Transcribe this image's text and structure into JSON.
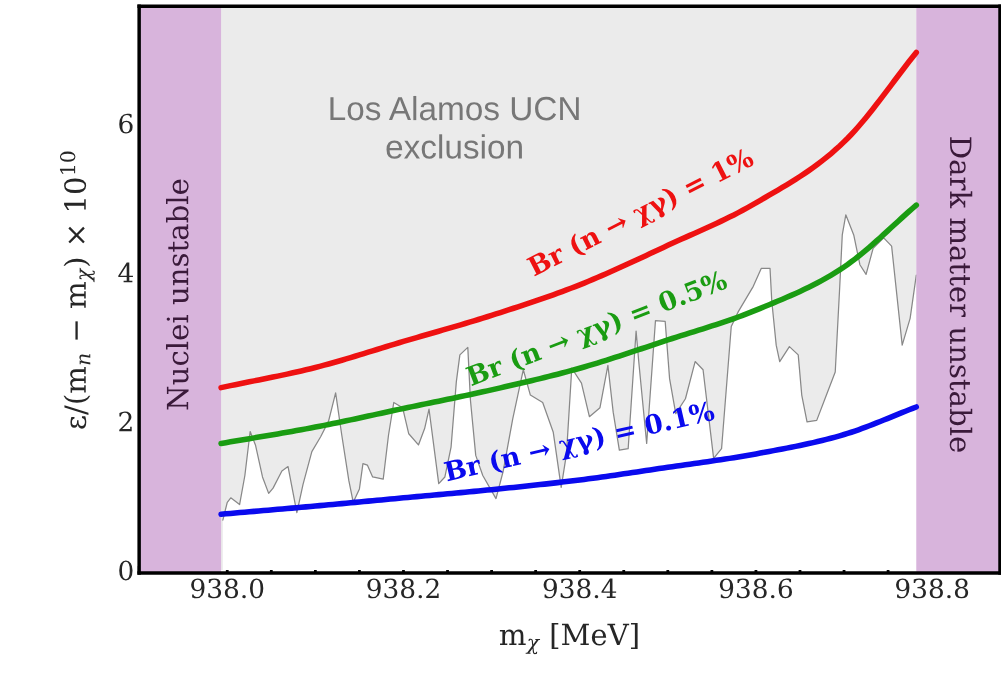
{
  "chart_data": {
    "type": "line",
    "xlabel": "m$_{χ}$ [MeV]",
    "ylabel": "ε/(m$_{n}$ − m$_{χ}$) × 10$^{10}$",
    "xlim": [
      937.9,
      938.877
    ],
    "xticks": [
      {
        "value": 938.0,
        "label": "938.0"
      },
      938.2,
      938.4,
      938.6,
      938.8
    ],
    "ylim": [
      -0.04,
      7.57
    ],
    "yticks": [
      0,
      2,
      4,
      6
    ],
    "grid": false,
    "legend": false,
    "series": [
      {
        "type": "area",
        "color": "#888888",
        "x": [
          937.995,
          938.0,
          938.004,
          938.014,
          938.02,
          938.026,
          938.032,
          938.04,
          938.047,
          938.052,
          938.062,
          938.069,
          938.073,
          938.079,
          938.086,
          938.096,
          938.106,
          938.115,
          938.123,
          938.13,
          938.138,
          938.143,
          938.15,
          938.154,
          938.159,
          938.165,
          938.177,
          938.183,
          938.189,
          938.199,
          938.206,
          938.217,
          938.224,
          938.229,
          938.24,
          938.247,
          938.254,
          938.26,
          938.264,
          938.273,
          938.276,
          938.282,
          938.29,
          938.305,
          938.313,
          938.324,
          938.336,
          938.344,
          938.358,
          938.37,
          938.379,
          938.385,
          938.391,
          938.402,
          938.411,
          938.423,
          938.432,
          938.438,
          938.445,
          938.455,
          938.464,
          938.467,
          938.476,
          938.486,
          938.497,
          938.502,
          938.509,
          938.52,
          938.531,
          938.54,
          938.552,
          938.561,
          938.572,
          938.58,
          938.597,
          938.606,
          938.616,
          938.618,
          938.623,
          938.627,
          938.638,
          938.648,
          938.652,
          938.658,
          938.669,
          938.68,
          938.69,
          938.695,
          938.698,
          938.702,
          938.711,
          938.718,
          938.725,
          938.733,
          938.745,
          938.754,
          938.766,
          938.775,
          938.782
        ],
        "values": [
          0.67,
          0.91,
          0.97,
          0.88,
          1.27,
          1.86,
          1.68,
          1.25,
          1.03,
          1.1,
          1.33,
          1.39,
          1.14,
          0.77,
          1.15,
          1.59,
          1.79,
          2.0,
          2.38,
          1.81,
          1.2,
          0.91,
          1.09,
          1.43,
          1.41,
          1.25,
          1.22,
          1.81,
          2.25,
          2.18,
          1.83,
          1.68,
          1.9,
          2.16,
          1.16,
          1.25,
          1.65,
          2.53,
          2.89,
          2.99,
          2.28,
          1.54,
          1.27,
          0.96,
          1.32,
          2.03,
          2.69,
          2.35,
          2.25,
          1.85,
          1.11,
          1.56,
          2.71,
          2.51,
          2.06,
          2.18,
          2.75,
          2.12,
          1.61,
          1.63,
          3.21,
          2.8,
          1.7,
          3.35,
          3.34,
          2.57,
          2.1,
          2.3,
          2.8,
          2.69,
          1.5,
          1.63,
          3.27,
          3.47,
          3.81,
          4.05,
          4.05,
          3.61,
          3.02,
          2.8,
          3.0,
          2.89,
          2.35,
          1.99,
          2.01,
          2.35,
          2.66,
          3.78,
          4.5,
          4.77,
          4.5,
          4.1,
          3.97,
          4.32,
          4.46,
          4.35,
          3.02,
          3.38,
          3.96
        ]
      },
      {
        "name": "Br (n → χγ) = 1%",
        "color": "#ee1111",
        "x": [
          937.993,
          938.1,
          938.2,
          938.3,
          938.4,
          938.5,
          938.6,
          938.7,
          938.782
        ],
        "values": [
          2.45,
          2.72,
          3.07,
          3.42,
          3.83,
          4.36,
          4.93,
          5.75,
          6.95
        ]
      },
      {
        "name": "Br (n → χγ) = 0.5%",
        "color": "#1a9c12",
        "x": [
          937.993,
          938.1,
          938.2,
          938.3,
          938.4,
          938.5,
          938.6,
          938.7,
          938.782
        ],
        "values": [
          1.7,
          1.92,
          2.17,
          2.42,
          2.71,
          3.09,
          3.49,
          4.07,
          4.9
        ]
      },
      {
        "name": "Br (n → χγ) = 0.1%",
        "color": "#0a0aee",
        "x": [
          937.993,
          938.1,
          938.2,
          938.3,
          938.4,
          938.5,
          938.6,
          938.7,
          938.782
        ],
        "values": [
          0.75,
          0.86,
          0.97,
          1.08,
          1.21,
          1.38,
          1.56,
          1.82,
          2.19
        ]
      }
    ],
    "bands": [
      {
        "axis": "x",
        "from": 937.993,
        "to": 938.782,
        "label": "Los Alamos UCN exclusion",
        "color": "#ebebeb"
      },
      {
        "axis": "x",
        "from": 937.9,
        "to": 937.993,
        "label": "Nuclei unstable",
        "color": "#d8b4dc"
      },
      {
        "axis": "x",
        "from": 938.782,
        "to": 938.877,
        "label": "Dark matter unstable",
        "color": "#d8b4dc"
      }
    ]
  }
}
